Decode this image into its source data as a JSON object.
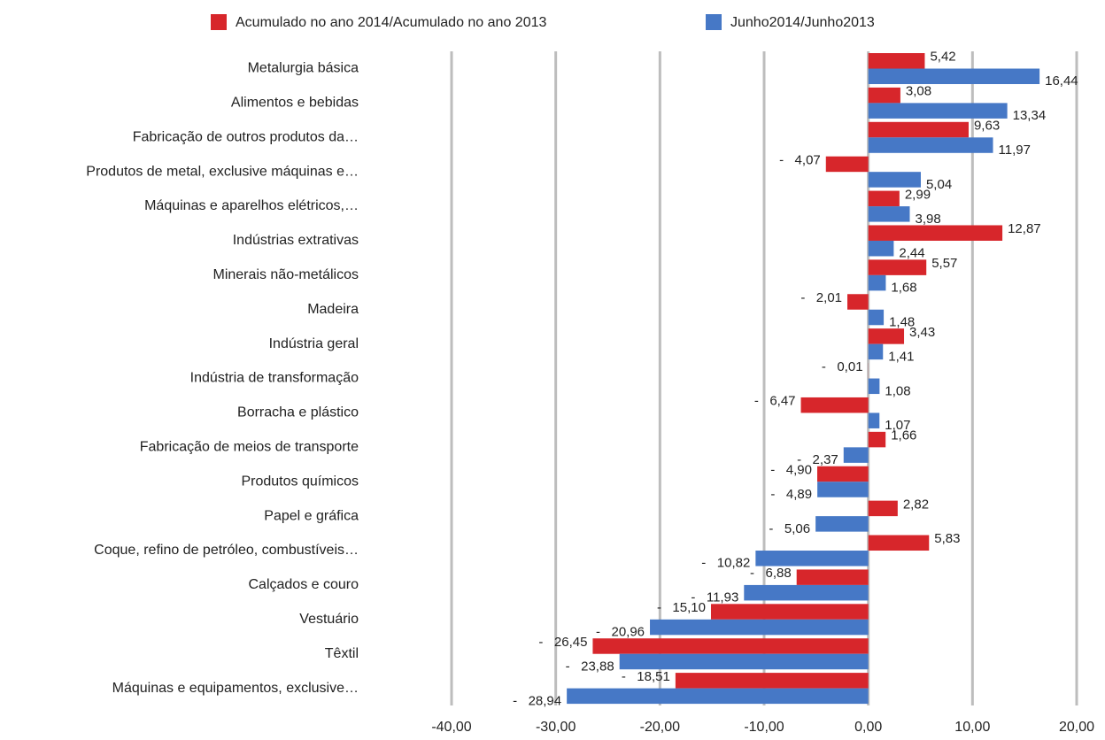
{
  "chart_data": {
    "type": "hbar",
    "categories": [
      "Metalurgia básica",
      "Alimentos e bebidas",
      "Fabricação de outros produtos da…",
      "Produtos de metal, exclusive máquinas e…",
      "Máquinas e aparelhos elétricos,…",
      "Indústrias extrativas",
      "Minerais não-metálicos",
      "Madeira",
      "Indústria geral",
      "Indústria de transformação",
      "Borracha e plástico",
      "Fabricação de meios de transporte",
      "Produtos químicos",
      "Papel e gráfica",
      "Coque, refino de petróleo, combustíveis…",
      "Calçados e couro",
      "Vestuário",
      "Têxtil",
      "Máquinas e equipamentos, exclusive…"
    ],
    "series": [
      {
        "name": "Acumulado no ano 2014/Acumulado no ano 2013",
        "color": "#d7262b",
        "values": [
          5.42,
          3.08,
          9.63,
          -4.07,
          2.99,
          12.87,
          5.57,
          -2.01,
          3.43,
          -0.01,
          -6.47,
          1.66,
          -4.9,
          2.82,
          5.83,
          -6.88,
          -15.1,
          -26.45,
          -18.51
        ],
        "value_labels": [
          "5,42",
          "3,08",
          "9,63",
          "-   4,07",
          "2,99",
          "12,87",
          "5,57",
          "-   2,01",
          "3,43",
          "-   0,01",
          "-   6,47",
          "1,66",
          "-   4,90",
          "2,82",
          "5,83",
          "-   6,88",
          "-   15,10",
          "-   26,45",
          "-   18,51"
        ]
      },
      {
        "name": "Junho2014/Junho2013",
        "color": "#4678c6",
        "values": [
          16.44,
          13.34,
          11.97,
          5.04,
          3.98,
          2.44,
          1.68,
          1.48,
          1.41,
          1.08,
          1.07,
          -2.37,
          -4.89,
          -5.06,
          -10.82,
          -11.93,
          -20.96,
          -23.88,
          -28.94
        ],
        "value_labels": [
          "16,44",
          "13,34",
          "11,97",
          "5,04",
          "3,98",
          "2,44",
          "1,68",
          "1,48",
          "1,41",
          "1,08",
          "1,07",
          "-   2,37",
          "-   4,89",
          "-   5,06",
          "-   10,82",
          "-   11,93",
          "-   20,96",
          "-   23,88",
          "-   28,94"
        ]
      }
    ],
    "xlim": [
      -40,
      20
    ],
    "xticks": [
      {
        "value": -40,
        "label": "-40,00"
      },
      {
        "value": -30,
        "label": "-30,00"
      },
      {
        "value": -20,
        "label": "-20,00"
      },
      {
        "value": -10,
        "label": "-10,00"
      },
      {
        "value": 0,
        "label": "0,00"
      },
      {
        "value": 10,
        "label": "10,00"
      },
      {
        "value": 20,
        "label": "20,00"
      }
    ],
    "grid": true
  }
}
